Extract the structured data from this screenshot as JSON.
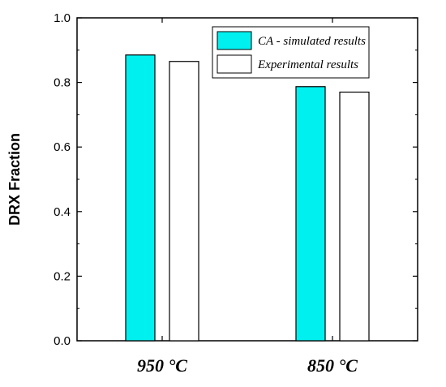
{
  "chart_data": {
    "type": "bar",
    "title": "",
    "xlabel": "",
    "ylabel": "DRX Fraction",
    "categories": [
      "950 °C",
      "850 °C"
    ],
    "series": [
      {
        "name": "CA - simulated results",
        "values": [
          0.885,
          0.787
        ],
        "color": "#00f0f0"
      },
      {
        "name": "Experimental results",
        "values": [
          0.865,
          0.77
        ],
        "color": "#ffffff"
      }
    ],
    "ylim": [
      0,
      1.0
    ],
    "yticks": [
      "0.0",
      "0.2",
      "0.4",
      "0.6",
      "0.8",
      "1.0"
    ],
    "grid": false,
    "legend_position": "top-right"
  }
}
